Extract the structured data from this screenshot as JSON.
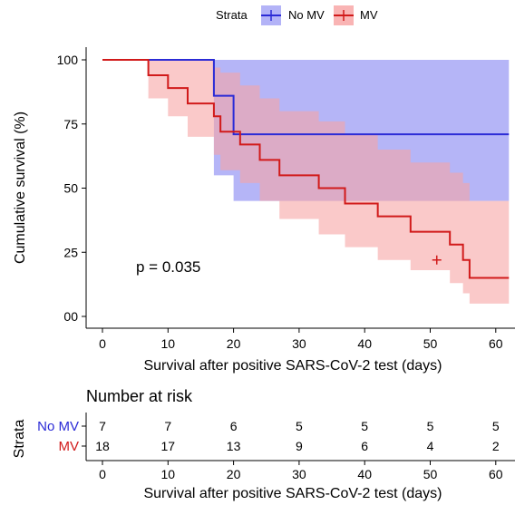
{
  "chart_data": [
    {
      "type": "line",
      "subtype": "kaplan-meier",
      "legend": {
        "title": "Strata",
        "position": "top"
      },
      "xlabel": "Survival after positive SARS-CoV-2 test (days)",
      "ylabel": "Cumulative survival (%)",
      "xlim": [
        0,
        62
      ],
      "ylim": [
        0,
        100
      ],
      "xticks": [
        "0",
        "10",
        "20",
        "30",
        "40",
        "50",
        "60"
      ],
      "yticks": [
        "00",
        "25",
        "50",
        "75",
        "100"
      ],
      "annotation": "p = 0.035",
      "series": [
        {
          "name": "No MV",
          "color": "#2b2bd6",
          "band_color": "#9c9cf4",
          "steps": [
            [
              0,
              100
            ],
            [
              17,
              86
            ],
            [
              20,
              71
            ],
            [
              62,
              71
            ]
          ],
          "band": [
            [
              0,
              100,
              100
            ],
            [
              17,
              100,
              55
            ],
            [
              20,
              100,
              45
            ],
            [
              62,
              100,
              48
            ]
          ],
          "censor_marks": []
        },
        {
          "name": "MV",
          "color": "#d11a1a",
          "band_color": "#f7a5a5",
          "steps": [
            [
              0,
              100
            ],
            [
              7,
              94
            ],
            [
              10,
              89
            ],
            [
              13,
              83
            ],
            [
              17,
              78
            ],
            [
              18,
              72
            ],
            [
              21,
              67
            ],
            [
              24,
              61
            ],
            [
              27,
              55
            ],
            [
              33,
              50
            ],
            [
              37,
              44
            ],
            [
              42,
              39
            ],
            [
              47,
              33
            ],
            [
              53,
              28
            ],
            [
              55,
              22
            ],
            [
              56,
              15
            ],
            [
              62,
              15
            ]
          ],
          "band": [
            [
              0,
              100,
              100
            ],
            [
              7,
              100,
              85
            ],
            [
              10,
              100,
              78
            ],
            [
              13,
              100,
              70
            ],
            [
              17,
              97,
              63
            ],
            [
              18,
              95,
              57
            ],
            [
              21,
              90,
              52
            ],
            [
              24,
              85,
              45
            ],
            [
              27,
              80,
              38
            ],
            [
              33,
              76,
              32
            ],
            [
              37,
              71,
              27
            ],
            [
              42,
              65,
              22
            ],
            [
              47,
              60,
              18
            ],
            [
              53,
              56,
              13
            ],
            [
              55,
              52,
              9
            ],
            [
              56,
              45,
              5
            ],
            [
              62,
              45,
              5
            ]
          ],
          "censor_marks": [
            [
              51,
              22
            ]
          ]
        }
      ]
    },
    {
      "type": "table",
      "title": "Number at risk",
      "ylabel": "Strata",
      "xlabel": "Survival after positive SARS-CoV-2 test (days)",
      "columns": [
        "0",
        "10",
        "20",
        "30",
        "40",
        "50",
        "60"
      ],
      "rows": [
        {
          "name": "No MV",
          "color": "#2b2bd6",
          "values": [
            "7",
            "7",
            "6",
            "5",
            "5",
            "5",
            "5"
          ]
        },
        {
          "name": "MV",
          "color": "#d11a1a",
          "values": [
            "18",
            "17",
            "13",
            "9",
            "6",
            "4",
            "2"
          ]
        }
      ]
    }
  ]
}
